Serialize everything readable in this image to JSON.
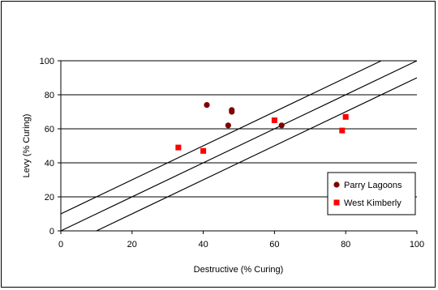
{
  "chart_data": {
    "type": "scatter",
    "title": "",
    "xlabel": "Destructive (% Curing)",
    "ylabel": "Levy (% Curing)",
    "xlim": [
      0,
      100
    ],
    "ylim": [
      0,
      100
    ],
    "x_ticks": [
      "0",
      "20",
      "40",
      "60",
      "80",
      "100"
    ],
    "y_ticks": [
      "0",
      "20",
      "40",
      "60",
      "80",
      "100"
    ],
    "grid": "horizontal",
    "legend_position": "right",
    "series": [
      {
        "name": "Parry Lagoons",
        "marker": "circle",
        "color": "#800000",
        "points": [
          [
            41,
            74
          ],
          [
            47,
            62
          ],
          [
            48,
            71
          ],
          [
            48,
            70
          ],
          [
            62,
            62
          ]
        ]
      },
      {
        "name": "West Kimberly",
        "marker": "square",
        "color": "#ff0000",
        "points": [
          [
            33,
            49
          ],
          [
            40,
            47
          ],
          [
            60,
            65
          ],
          [
            79,
            59
          ],
          [
            80,
            67
          ]
        ]
      }
    ],
    "reference_lines": [
      {
        "from": [
          0,
          10
        ],
        "to": [
          90,
          100
        ]
      },
      {
        "from": [
          0,
          0
        ],
        "to": [
          100,
          100
        ]
      },
      {
        "from": [
          10,
          0
        ],
        "to": [
          100,
          90
        ]
      }
    ]
  }
}
